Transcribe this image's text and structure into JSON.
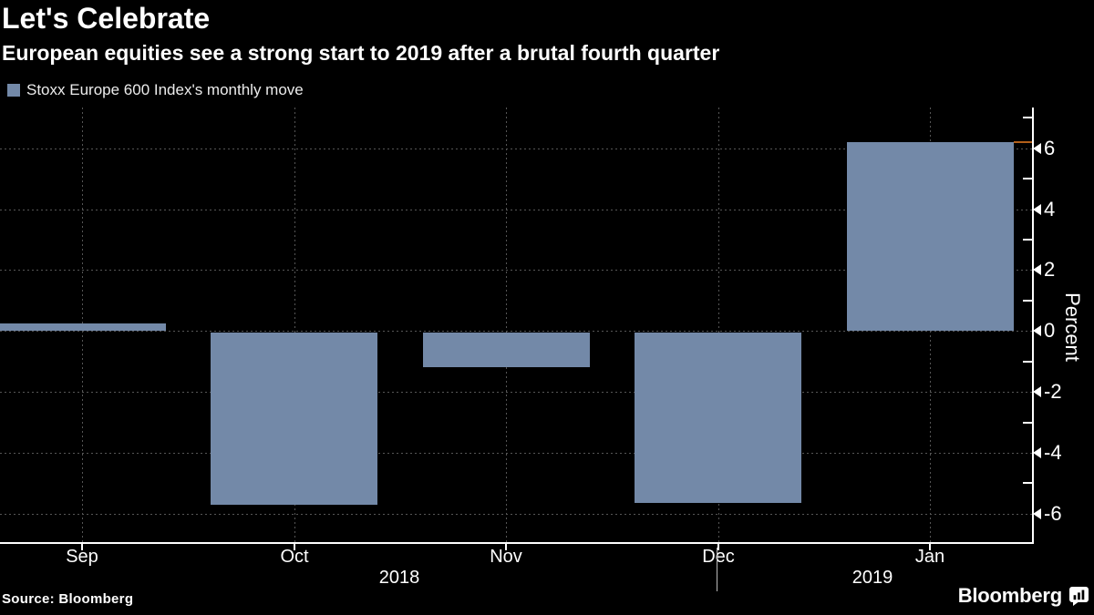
{
  "chart_data": {
    "type": "bar",
    "title": "Let's Celebrate",
    "subtitle": "European equities see a strong start to 2019 after a brutal fourth quarter",
    "series_name": "Stoxx Europe 600 Index's monthly move",
    "categories": [
      "Sep",
      "Oct",
      "Nov",
      "Dec",
      "Jan"
    ],
    "values": [
      0.24,
      -5.65,
      -1.15,
      -5.6,
      6.2
    ],
    "year_labels": [
      "2018",
      "2019"
    ],
    "xlabel": "",
    "ylabel": "Percent",
    "yticks": [
      6,
      4,
      2,
      0,
      -2,
      -4,
      -6
    ],
    "minor_yticks": [
      7,
      5,
      3,
      1,
      -1,
      -3,
      -5
    ],
    "ylim": [
      -7,
      7.3
    ],
    "grid": true,
    "legend_position": "top-left",
    "y_axis_side": "right",
    "last_value_marker": 6.2,
    "colors": {
      "background": "#000000",
      "bar": "#7389a8",
      "grid": "#565656",
      "axis": "#ffffff",
      "text": "#ffffff",
      "last_value_marker": "#b35f19"
    }
  },
  "footer": {
    "source": "Source:  Bloomberg",
    "brand": "Bloomberg"
  }
}
